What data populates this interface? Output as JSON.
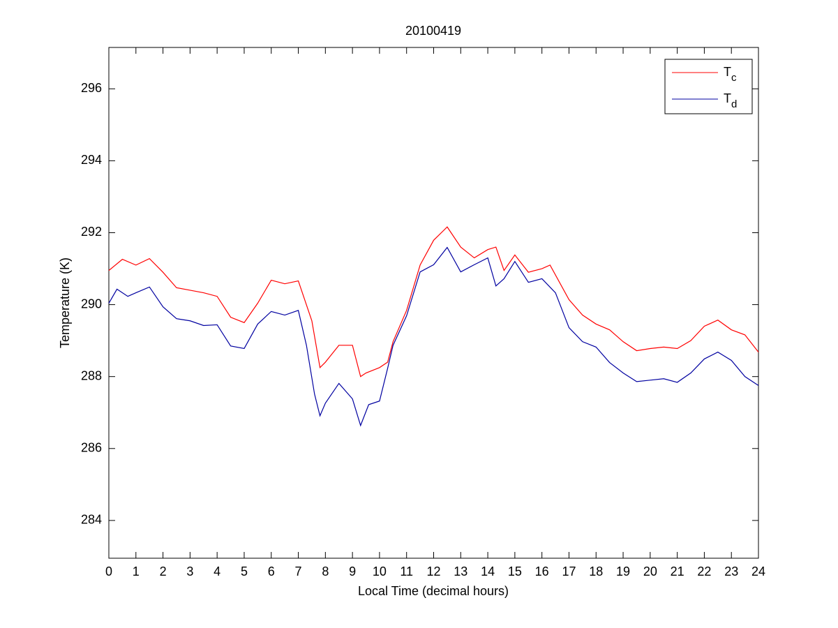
{
  "chart_data": {
    "type": "line",
    "title": "20100419",
    "x_label": "Local Time (decimal hours)",
    "y_label": "Temperature (K)",
    "xlim": [
      0,
      24
    ],
    "ylim": [
      282.95,
      297.15
    ],
    "xticks": [
      0,
      1,
      2,
      3,
      4,
      5,
      6,
      7,
      8,
      9,
      10,
      11,
      12,
      13,
      14,
      15,
      16,
      17,
      18,
      19,
      20,
      21,
      22,
      23,
      24
    ],
    "yticks": [
      284,
      286,
      288,
      290,
      292,
      294,
      296
    ],
    "grid": false,
    "legend": "upper right",
    "series": [
      {
        "name": "Tc",
        "color": "#ff0000",
        "x": [
          0,
          0.5,
          1,
          1.5,
          2,
          2.5,
          3,
          3.5,
          4,
          4.5,
          5,
          5.5,
          6,
          6.5,
          7,
          7.5,
          7.8,
          8,
          8.5,
          9,
          9.3,
          9.5,
          10,
          10.3,
          10.5,
          11,
          11.5,
          12,
          12.5,
          13,
          13.5,
          14,
          14.3,
          14.6,
          15,
          15.5,
          16,
          16.3,
          17,
          17.5,
          18,
          18.5,
          19,
          19.5,
          20,
          20.5,
          21,
          21.5,
          22,
          22.5,
          23,
          23.5,
          24
        ],
        "values": [
          290.95,
          291.26,
          291.1,
          291.28,
          290.9,
          290.47,
          290.4,
          290.33,
          290.23,
          289.65,
          289.5,
          290.04,
          290.68,
          290.58,
          290.66,
          289.55,
          288.25,
          288.4,
          288.87,
          288.87,
          288.0,
          288.1,
          288.25,
          288.4,
          288.97,
          289.84,
          291.1,
          291.79,
          292.16,
          291.6,
          291.3,
          291.53,
          291.6,
          290.95,
          291.38,
          290.9,
          291.0,
          291.1,
          290.14,
          289.71,
          289.46,
          289.3,
          288.97,
          288.72,
          288.78,
          288.82,
          288.78,
          289.0,
          289.4,
          289.57,
          289.3,
          289.16,
          288.68
        ]
      },
      {
        "name": "Td",
        "color": "#0000a0",
        "x": [
          0,
          0.3,
          0.7,
          1,
          1.5,
          2,
          2.5,
          3,
          3.5,
          4,
          4.5,
          5,
          5.5,
          6,
          6.5,
          7,
          7.3,
          7.6,
          7.8,
          8,
          8.5,
          9,
          9.3,
          9.6,
          10,
          10.3,
          10.5,
          11,
          11.5,
          12,
          12.5,
          13,
          13.5,
          14,
          14.3,
          14.6,
          15,
          15.5,
          16,
          16.5,
          17,
          17.5,
          18,
          18.5,
          19,
          19.5,
          20,
          20.5,
          21,
          21.5,
          22,
          22.5,
          23,
          23.5,
          24
        ],
        "values": [
          290.04,
          290.43,
          290.23,
          290.33,
          290.49,
          289.94,
          289.61,
          289.55,
          289.42,
          289.44,
          288.85,
          288.78,
          289.46,
          289.81,
          289.71,
          289.84,
          288.87,
          287.51,
          286.91,
          287.26,
          287.81,
          287.38,
          286.64,
          287.22,
          287.32,
          288.23,
          288.87,
          289.69,
          290.91,
          291.11,
          291.59,
          290.91,
          291.11,
          291.3,
          290.52,
          290.72,
          291.2,
          290.62,
          290.72,
          290.33,
          289.36,
          288.97,
          288.82,
          288.39,
          288.1,
          287.86,
          287.9,
          287.94,
          287.84,
          288.1,
          288.49,
          288.68,
          288.45,
          288.0,
          287.75
        ]
      }
    ]
  }
}
